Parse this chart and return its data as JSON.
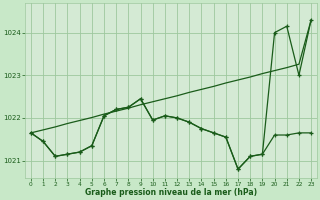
{
  "background_color": "#c8e8c8",
  "plot_bg_color": "#d4ead4",
  "grid_color": "#9ec89e",
  "line_color": "#1a5c1a",
  "xlabel": "Graphe pression niveau de la mer (hPa)",
  "ylim": [
    1020.6,
    1024.7
  ],
  "xlim": [
    -0.5,
    23.5
  ],
  "yticks": [
    1021,
    1022,
    1023,
    1024
  ],
  "xticks": [
    0,
    1,
    2,
    3,
    4,
    5,
    6,
    7,
    8,
    9,
    10,
    11,
    12,
    13,
    14,
    15,
    16,
    17,
    18,
    19,
    20,
    21,
    22,
    23
  ],
  "line1_x": [
    0,
    1,
    2,
    3,
    4,
    5,
    6,
    7,
    8,
    9,
    10,
    11,
    12,
    13,
    14,
    15,
    16,
    17,
    18,
    19,
    20,
    21,
    22,
    23
  ],
  "line1_y": [
    1021.65,
    1021.45,
    1021.1,
    1021.15,
    1021.2,
    1021.35,
    1022.05,
    1022.2,
    1022.25,
    1022.45,
    1021.95,
    1022.05,
    1022.0,
    1021.9,
    1021.75,
    1021.65,
    1021.55,
    1020.8,
    1021.1,
    1021.15,
    1021.6,
    1021.6,
    1021.65,
    1021.65
  ],
  "line2_x": [
    0,
    1,
    2,
    3,
    4,
    5,
    6,
    7,
    8,
    9,
    10,
    11,
    12,
    13,
    14,
    15,
    16,
    17,
    18,
    19,
    20,
    21,
    22,
    23
  ],
  "line2_y": [
    1021.65,
    1021.45,
    1021.1,
    1021.15,
    1021.2,
    1021.35,
    1022.05,
    1022.2,
    1022.25,
    1022.45,
    1021.95,
    1022.05,
    1022.0,
    1021.9,
    1021.75,
    1021.65,
    1021.55,
    1020.8,
    1021.1,
    1021.15,
    1024.0,
    1024.15,
    1023.0,
    1024.3
  ],
  "line3_x": [
    0,
    1,
    2,
    3,
    4,
    5,
    6,
    7,
    8,
    9,
    10,
    11,
    12,
    13,
    14,
    15,
    16,
    17,
    18,
    19,
    20,
    21,
    22,
    23
  ],
  "line3_y": [
    1021.65,
    1021.72,
    1021.79,
    1021.87,
    1021.94,
    1022.01,
    1022.09,
    1022.16,
    1022.23,
    1022.31,
    1022.38,
    1022.45,
    1022.52,
    1022.6,
    1022.67,
    1022.74,
    1022.82,
    1022.89,
    1022.96,
    1023.04,
    1023.11,
    1023.18,
    1023.26,
    1024.3
  ]
}
